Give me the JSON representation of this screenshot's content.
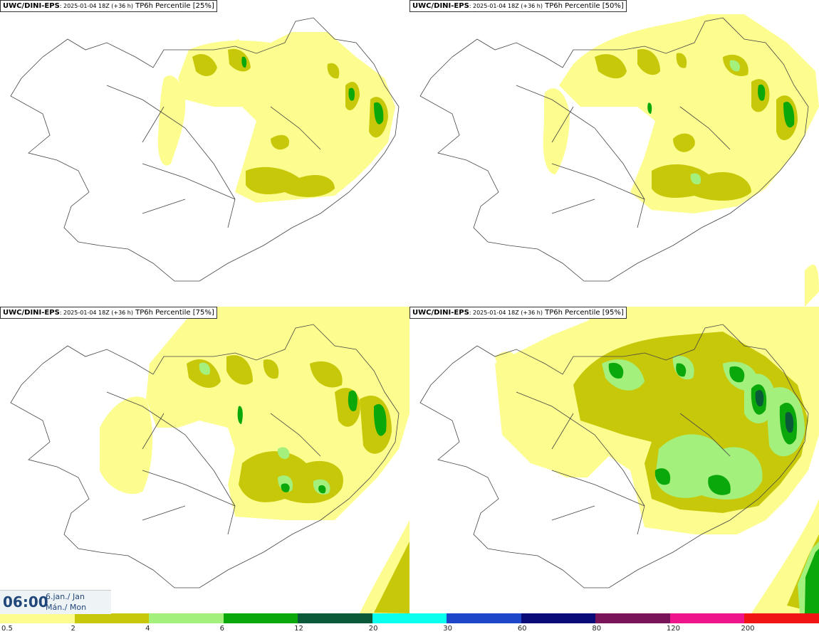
{
  "panels": [
    {
      "model": "UWC/DINI-EPS",
      "run": ": 2025-01-04 18Z (+36 h)",
      "field": " TP6h Percentile [25%]"
    },
    {
      "model": "UWC/DINI-EPS",
      "run": ": 2025-01-04 18Z (+36 h)",
      "field": " TP6h Percentile [50%]"
    },
    {
      "model": "UWC/DINI-EPS",
      "run": ": 2025-01-04 18Z (+36 h)",
      "field": " TP6h Percentile [75%]"
    },
    {
      "model": "UWC/DINI-EPS",
      "run": ": 2025-01-04 18Z (+36 h)",
      "field": " TP6h Percentile [95%]"
    }
  ],
  "time": {
    "clock": "06:00",
    "date": "6.jan./ Jan",
    "day": "Mán./ Mon"
  },
  "legend": {
    "colors": [
      "#fdfd8f",
      "#c8c80a",
      "#a3f07c",
      "#0aa80a",
      "#0a5a3a",
      "#0affee",
      "#1e46c8",
      "#0a0a78",
      "#78145a",
      "#f0148c",
      "#f01414"
    ],
    "labels": [
      "0.5",
      "2",
      "4",
      "6",
      "12",
      "20",
      "30",
      "60",
      "80",
      "120",
      "200"
    ]
  },
  "colors": {
    "light": "#fdfd8f",
    "olive": "#c8c80a",
    "lgreen": "#a3f07c",
    "green": "#0aa80a",
    "dgreen": "#0a5a3a",
    "coast": "#444444"
  }
}
